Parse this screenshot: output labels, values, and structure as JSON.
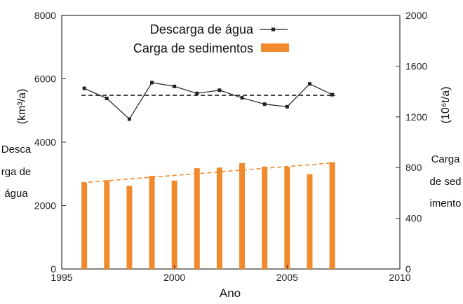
{
  "chart_data": {
    "type": "bar+line",
    "x_axis": {
      "label": "Ano",
      "range": [
        1995,
        2010
      ],
      "ticks": [
        1995,
        2000,
        2005,
        2010
      ]
    },
    "y_left": {
      "unit_label": "(km³/a)",
      "range": [
        0,
        8000
      ],
      "ticks": [
        0,
        2000,
        4000,
        6000,
        8000
      ],
      "title": "Descarga de água"
    },
    "y_right": {
      "unit_label": "(10⁶t/a)",
      "range": [
        0,
        2000
      ],
      "ticks": [
        0,
        400,
        800,
        1200,
        1600,
        2000
      ],
      "title": "Carga de sedimentos"
    },
    "legend": [
      {
        "label": "Descarga de água",
        "style": "line-with-square-markers",
        "color": "#222222"
      },
      {
        "label": "Carga de sedimentos",
        "style": "bar",
        "color": "#f08a2c"
      }
    ],
    "legend_position": "top-center",
    "grid": false,
    "series": [
      {
        "name": "Descarga de água",
        "axis": "left",
        "kind": "line",
        "x": [
          1996,
          1997,
          1998,
          1999,
          2000,
          2001,
          2002,
          2003,
          2004,
          2005,
          2006,
          2007
        ],
        "values": [
          5700,
          5380,
          4730,
          5880,
          5760,
          5540,
          5640,
          5400,
          5200,
          5120,
          5840,
          5500
        ]
      },
      {
        "name": "Carga de sedimentos",
        "axis": "right",
        "kind": "bar",
        "x": [
          1996,
          1997,
          1998,
          1999,
          2000,
          2001,
          2002,
          2003,
          2004,
          2005,
          2006,
          2007
        ],
        "values": [
          680,
          700,
          655,
          735,
          697,
          795,
          800,
          835,
          808,
          805,
          748,
          842
        ]
      }
    ],
    "trend_lines": [
      {
        "series": "Descarga de água",
        "axis": "left",
        "style": "dashed",
        "color": "#222222",
        "from": [
          1996,
          5480
        ],
        "to": [
          2007,
          5480
        ]
      },
      {
        "series": "Carga de sedimentos",
        "axis": "right",
        "style": "dashed",
        "color": "#f08a2c",
        "from": [
          1996,
          680
        ],
        "to": [
          2007,
          838
        ]
      }
    ]
  },
  "labels": {
    "x_title": "Ano",
    "y_left_vertical": "Descarga de água",
    "y_right_vertical": "Carga de sedimento",
    "y_left_unit": "(km³/a)",
    "y_right_unit": "(10⁶t/a)"
  },
  "colors": {
    "bar": "#f08a2c",
    "line": "#222222",
    "axis": "#333333"
  }
}
